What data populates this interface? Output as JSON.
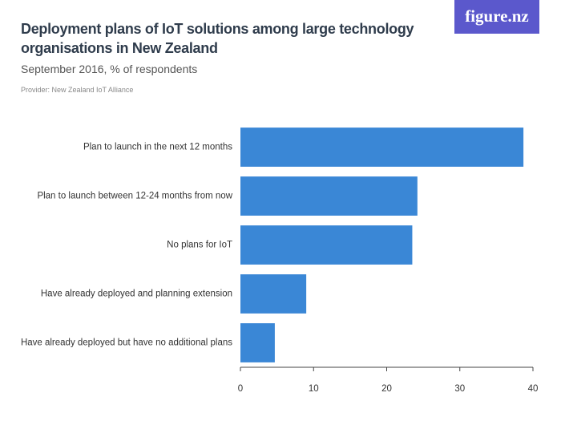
{
  "logo": "figure.nz",
  "chart_data": {
    "type": "bar",
    "orientation": "horizontal",
    "title": "Deployment plans of IoT solutions among large technology organisations in New Zealand",
    "subtitle": "September 2016, % of respondents",
    "provider": "Provider: New Zealand IoT Alliance",
    "categories": [
      "Plan to launch in the next 12 months",
      "Plan to launch between 12-24 months from now",
      "No plans for IoT",
      "Have already deployed and planning extension",
      "Have already deployed but have no additional plans"
    ],
    "values": [
      38.7,
      24.2,
      23.5,
      9.0,
      4.7
    ],
    "color": "#3a87d6",
    "xlim": [
      0,
      40
    ],
    "xticks": [
      0,
      10,
      20,
      30,
      40
    ]
  }
}
